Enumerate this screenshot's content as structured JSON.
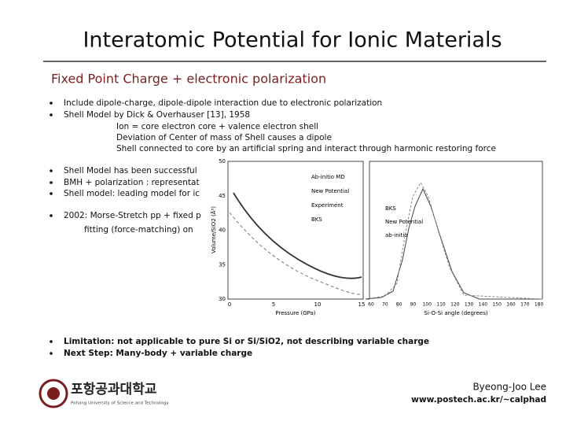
{
  "title": "Interatomic Potential for Ionic Materials",
  "subtitle": "Fixed Point Charge + electronic polarization",
  "bullets_1": [
    "Include dipole-charge, dipole-dipole interaction due to electronic polarization",
    "Shell Model by Dick & Overhauser [13], 1958"
  ],
  "sub_items": [
    "Ion = core electron core + valence electron shell",
    "Deviation of Center of mass of Shell causes a dipole",
    "Shell connected to core by an artificial spring and interact through harmonic restoring force"
  ],
  "bullets_2": [
    "Shell Model has been successful",
    "BMH + polarization : representat",
    "Shell model: leading model for ic"
  ],
  "bullet_3": "2002: Morse-Stretch pp + fixed p",
  "bullet_3_cont": "fitting (force-matching) on",
  "figure": {
    "left": {
      "yticks": [
        "30",
        "35",
        "40",
        "45",
        "50"
      ],
      "xticks": [
        "0",
        "5",
        "10",
        "15"
      ],
      "ylabel": "Volume/SiO2 (Å³)",
      "xlabel": "Pressure (GPa)",
      "legend": [
        "Ab-initio MD",
        "New Potential",
        "Experiment",
        "BKS"
      ]
    },
    "right": {
      "xticks": [
        "60",
        "70",
        "80",
        "90",
        "100",
        "110",
        "120",
        "130",
        "140",
        "150",
        "160",
        "170",
        "180"
      ],
      "xlabel": "Si-O-Si angle (degrees)",
      "legend": [
        "BKS",
        "New Potential",
        "ab-initio"
      ]
    }
  },
  "bullets_4": [
    "Limitation: not applicable to pure Si or Si/SiO2, not describing variable charge",
    "Next Step: Many-body + variable charge"
  ],
  "footer": {
    "logo_korean": "포항공과대학교",
    "logo_english": "Pohang University of Science and Technology",
    "author": "Byeong-Joo Lee",
    "url": "www.postech.ac.kr/~calphad"
  }
}
